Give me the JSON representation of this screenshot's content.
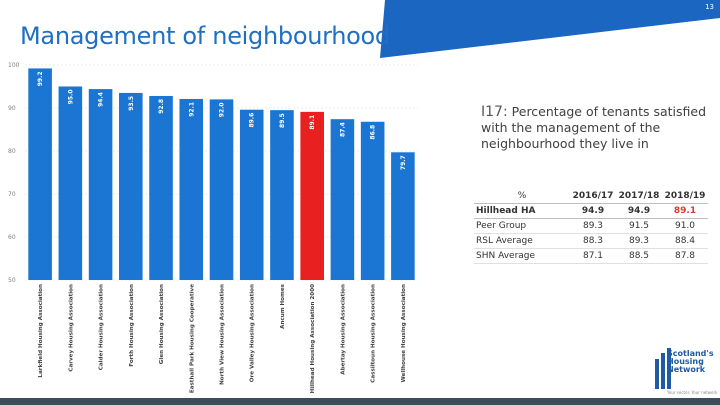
{
  "page": {
    "number": "13",
    "title": "Management of neighbourhood"
  },
  "question": {
    "id": "I17:",
    "text": "Percentage of tenants satisfied with the management of the neighbourhood they live in"
  },
  "table": {
    "unit_header": "%",
    "years": [
      "2016/17",
      "2017/18",
      "2018/19"
    ],
    "rows": [
      {
        "label": "Hillhead HA",
        "values": [
          "94.9",
          "94.9",
          "89.1"
        ]
      },
      {
        "label": "Peer Group",
        "values": [
          "89.3",
          "91.5",
          "91.0"
        ]
      },
      {
        "label": "RSL Average",
        "values": [
          "88.3",
          "89.3",
          "88.4"
        ]
      },
      {
        "label": "SHN Average",
        "values": [
          "87.1",
          "88.5",
          "87.8"
        ]
      }
    ]
  },
  "logo": {
    "lines": [
      "Scotland's",
      "Housing",
      "Network"
    ],
    "tagline": "Your sector. Your network"
  },
  "colors": {
    "bar": "#1a76d2",
    "highlight_bar": "#e8201f",
    "banner": "#1a66c0",
    "title": "#1f6fc3",
    "highlight_value": "#d63b2f"
  },
  "chart_data": {
    "type": "bar",
    "ylim": [
      50,
      100
    ],
    "yticks": [
      "100",
      "90",
      "80",
      "70",
      "60",
      "50"
    ],
    "grid": true,
    "categories": [
      "Larkfield Housing Association",
      "Carvey Housing Association",
      "Calder Housing Association",
      "Forth Housing Association",
      "Glen Housing Association",
      "Easthall Park Housing Cooperative",
      "North View Housing Association",
      "Ore Valley Housing Association",
      "Ancum Homes",
      "Hillhead Housing Association 2000",
      "Abertay Housing Association",
      "Cassiltoun Housing Association",
      "Wellhouse Housing Association"
    ],
    "values": [
      99.2,
      95.0,
      94.4,
      93.5,
      92.8,
      92.1,
      92.0,
      89.6,
      89.5,
      89.1,
      87.4,
      86.8,
      79.7
    ],
    "value_labels": [
      "99.2",
      "95.0",
      "94.4",
      "93.5",
      "92.8",
      "92.1",
      "92.0",
      "89.6",
      "89.5",
      "89.1",
      "87.4",
      "86.8",
      "79.7"
    ],
    "highlight_category": "Hillhead Housing Association 2000"
  }
}
